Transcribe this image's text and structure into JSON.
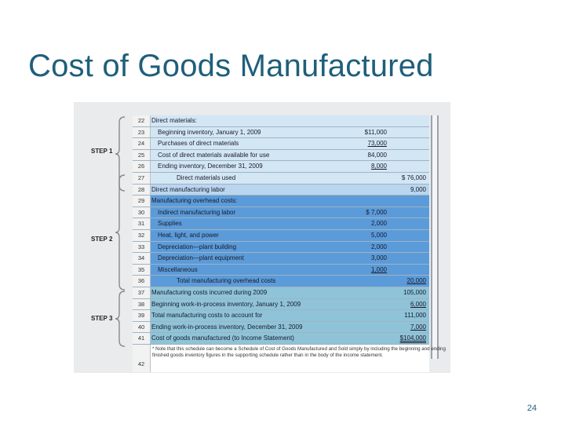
{
  "slide": {
    "title": "Cost of Goods Manufactured",
    "page_number": "24"
  },
  "steps": [
    "STEP 1",
    "STEP 2",
    "STEP 3"
  ],
  "colors": {
    "light": "#d3e6f4",
    "labor": "#b9d6ee",
    "overhead": "#5b9bd9",
    "final": "#8ec3d8"
  },
  "rows": [
    {
      "n": "22",
      "label": "Direct materials:",
      "c1": "",
      "c2": "",
      "indent": 0,
      "zone": "light"
    },
    {
      "n": "23",
      "label": "Beginning inventory, January 1, 2009",
      "c1": "$11,000",
      "c2": "",
      "indent": 1,
      "zone": "light"
    },
    {
      "n": "24",
      "label": "Purchases of direct materials",
      "c1": "73,000",
      "c2": "",
      "indent": 1,
      "zone": "light"
    },
    {
      "n": "25",
      "label": "Cost of direct materials available for use",
      "c1": "84,000",
      "c2": "",
      "indent": 1,
      "zone": "light"
    },
    {
      "n": "26",
      "label": "Ending inventory, December 31, 2009",
      "c1": "8,000",
      "c2": "",
      "indent": 1,
      "zone": "light"
    },
    {
      "n": "27",
      "label": "Direct materials used",
      "c1": "",
      "c2": "$ 76,000",
      "indent": 2,
      "zone": "light"
    },
    {
      "n": "28",
      "label": "Direct manufacturing labor",
      "c1": "",
      "c2": "9,000",
      "indent": 0,
      "zone": "labor"
    },
    {
      "n": "29",
      "label": "Manufacturing overhead costs:",
      "c1": "",
      "c2": "",
      "indent": 0,
      "zone": "overhead"
    },
    {
      "n": "30",
      "label": "Indirect manufacturing labor",
      "c1": "$  7,000",
      "c2": "",
      "indent": 1,
      "zone": "overhead"
    },
    {
      "n": "31",
      "label": "Supplies",
      "c1": "2,000",
      "c2": "",
      "indent": 1,
      "zone": "overhead"
    },
    {
      "n": "32",
      "label": "Heat, light, and power",
      "c1": "5,000",
      "c2": "",
      "indent": 1,
      "zone": "overhead"
    },
    {
      "n": "33",
      "label": "Depreciation—plant building",
      "c1": "2,000",
      "c2": "",
      "indent": 1,
      "zone": "overhead"
    },
    {
      "n": "34",
      "label": "Depreciation—plant equipment",
      "c1": "3,000",
      "c2": "",
      "indent": 1,
      "zone": "overhead"
    },
    {
      "n": "35",
      "label": "Miscellaneous",
      "c1": "1,000",
      "c2": "",
      "indent": 1,
      "zone": "overhead"
    },
    {
      "n": "36",
      "label": "Total manufacturing overhead costs",
      "c1": "",
      "c2": "20,000",
      "indent": 2,
      "zone": "overhead"
    },
    {
      "n": "37",
      "label": "Manufacturing costs incurred during 2009",
      "c1": "",
      "c2": "105,000",
      "indent": 0,
      "zone": "final"
    },
    {
      "n": "38",
      "label": "Beginning work-in-process inventory, January 1, 2009",
      "c1": "",
      "c2": "6,000",
      "indent": 0,
      "zone": "final"
    },
    {
      "n": "39",
      "label": "Total manufacturing costs to account for",
      "c1": "",
      "c2": "111,000",
      "indent": 0,
      "zone": "final"
    },
    {
      "n": "40",
      "label": "Ending work-in-process inventory, December 31, 2009",
      "c1": "",
      "c2": "7,000",
      "indent": 0,
      "zone": "final"
    },
    {
      "n": "41",
      "label": "Cost of goods manufactured (to Income Statement)",
      "c1": "",
      "c2": "$104,000",
      "indent": 0,
      "zone": "final"
    }
  ],
  "footnote": {
    "n": "42",
    "text": "* Note that this schedule can become a Schedule of Cost of Goods Manufactured and Sold simply by including the beginning and ending finished goods inventory figures in the supporting schedule rather than in the body of the income statement."
  }
}
